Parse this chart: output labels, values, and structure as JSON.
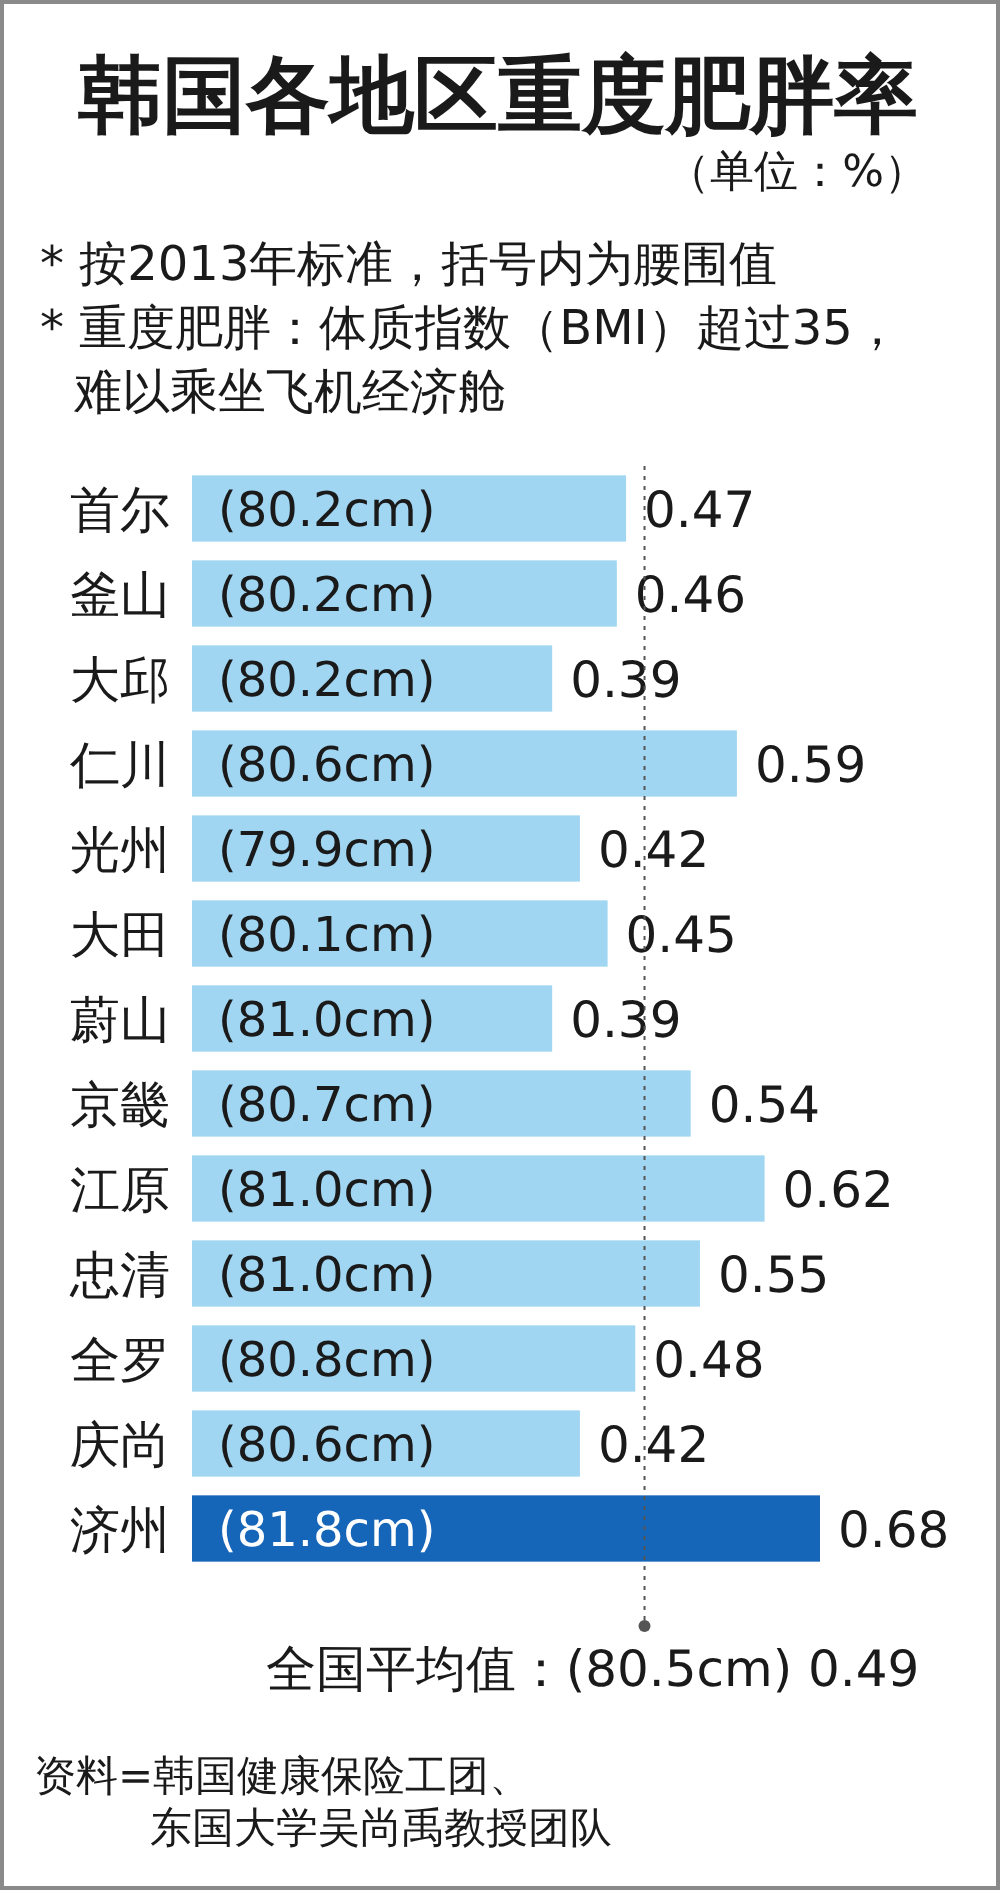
{
  "chart_data": {
    "type": "bar",
    "orientation": "horizontal",
    "title": "韩国各地区重度肥胖率",
    "subtitle": "（单位：%）",
    "categories": [
      "首尔",
      "釜山",
      "大邱",
      "仁川",
      "光州",
      "大田",
      "蔚山",
      "京畿",
      "江原",
      "忠清",
      "全罗",
      "庆尚",
      "济州"
    ],
    "values": [
      0.47,
      0.46,
      0.39,
      0.59,
      0.42,
      0.45,
      0.39,
      0.54,
      0.62,
      0.55,
      0.48,
      0.42,
      0.68
    ],
    "colors": [
      "#a0d6f2",
      "#a0d6f2",
      "#a0d6f2",
      "#a0d6f2",
      "#a0d6f2",
      "#a0d6f2",
      "#a0d6f2",
      "#a0d6f2",
      "#a0d6f2",
      "#a0d6f2",
      "#a0d6f2",
      "#a0d6f2",
      "#1565b8"
    ],
    "data_labels": true,
    "ref_lines": [
      {
        "axis": "x",
        "value": 0.49,
        "label": "全国平均值：(80.5cm) 0.49",
        "line_style": "dotted",
        "color": "#555555"
      }
    ],
    "annotations": [
      "* 按2013年标准，括号内为腰围值",
      "* 重度肥胖：体质指数（BMI）超过35，难以乘坐飞机经济舱",
      {
        "text": "(80.2cm)",
        "y": "首尔"
      },
      {
        "text": "(80.2cm)",
        "y": "釜山"
      },
      {
        "text": "(80.2cm)",
        "y": "大邱"
      },
      {
        "text": "(80.6cm)",
        "y": "仁川"
      },
      {
        "text": "(79.9cm)",
        "y": "光州"
      },
      {
        "text": "(80.1cm)",
        "y": "大田"
      },
      {
        "text": "(81.0cm)",
        "y": "蔚山"
      },
      {
        "text": "(80.7cm)",
        "y": "京畿"
      },
      {
        "text": "(81.0cm)",
        "y": "江原"
      },
      {
        "text": "(81.0cm)",
        "y": "忠清"
      },
      {
        "text": "(80.8cm)",
        "y": "全罗"
      },
      {
        "text": "(80.6cm)",
        "y": "庆尚"
      },
      {
        "text": "(81.8cm)",
        "y": "济州"
      },
      "资料=韩国健康保险工团、东国大学吴尚禹教授团队"
    ]
  }
}
